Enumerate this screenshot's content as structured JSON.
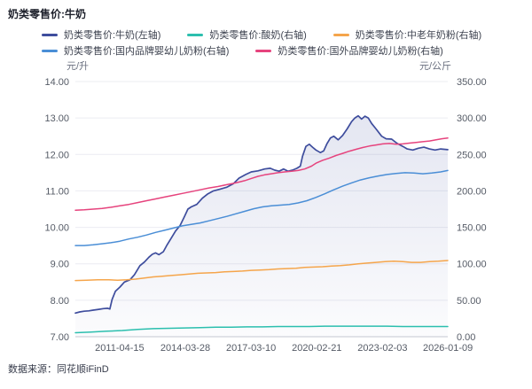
{
  "title": "奶类零售价:牛奶",
  "source": "数据来源：同花顺iFinD",
  "chart_data": {
    "type": "line",
    "background": "#ffffff",
    "grid_color": "#ebecf2",
    "axis_line_color": "#c6c9d2",
    "area_fill_color": "#3e4d9d",
    "x_axis": {
      "start_year": 2009.3,
      "end_year": 2026.02,
      "ticks": [
        {
          "label": "2011-04-15",
          "year": 2011.285
        },
        {
          "label": "2014-03-28",
          "year": 2014.236
        },
        {
          "label": "2017-03-10",
          "year": 2017.186
        },
        {
          "label": "2020-02-21",
          "year": 2020.139
        },
        {
          "label": "2023-02-03",
          "year": 2023.09
        },
        {
          "label": "2026-01-09",
          "year": 2026.022
        }
      ]
    },
    "left_axis": {
      "unit": "元/升",
      "min": 7,
      "max": 14,
      "ticks": [
        "14.00",
        "13.00",
        "12.00",
        "11.00",
        "10.00",
        "9.00",
        "8.00",
        "7.00"
      ]
    },
    "right_axis": {
      "unit": "元/公斤",
      "min": 0,
      "max": 350,
      "ticks": [
        "350.00",
        "300.00",
        "250.00",
        "200.00",
        "150.00",
        "100.00",
        "50.00",
        "0.00"
      ]
    },
    "series": [
      {
        "key": "milk",
        "name": "奶类零售价:牛奶(左轴)",
        "axis": "left",
        "color": "#3e4d9d",
        "width": 1.7,
        "area": true,
        "points": [
          [
            2009.3,
            7.65
          ],
          [
            2009.5,
            7.68
          ],
          [
            2009.7,
            7.7
          ],
          [
            2009.9,
            7.71
          ],
          [
            2010.1,
            7.73
          ],
          [
            2010.35,
            7.75
          ],
          [
            2010.55,
            7.77
          ],
          [
            2010.75,
            7.78
          ],
          [
            2010.85,
            7.76
          ],
          [
            2010.95,
            8.02
          ],
          [
            2011.1,
            8.25
          ],
          [
            2011.3,
            8.36
          ],
          [
            2011.5,
            8.5
          ],
          [
            2011.75,
            8.56
          ],
          [
            2011.95,
            8.7
          ],
          [
            2012.2,
            8.95
          ],
          [
            2012.4,
            9.05
          ],
          [
            2012.6,
            9.18
          ],
          [
            2012.75,
            9.26
          ],
          [
            2012.9,
            9.3
          ],
          [
            2013.05,
            9.25
          ],
          [
            2013.25,
            9.33
          ],
          [
            2013.4,
            9.5
          ],
          [
            2013.6,
            9.7
          ],
          [
            2013.8,
            9.9
          ],
          [
            2014.0,
            10.05
          ],
          [
            2014.2,
            10.3
          ],
          [
            2014.35,
            10.5
          ],
          [
            2014.5,
            10.56
          ],
          [
            2014.75,
            10.63
          ],
          [
            2015.0,
            10.8
          ],
          [
            2015.25,
            10.92
          ],
          [
            2015.5,
            11.0
          ],
          [
            2015.8,
            11.05
          ],
          [
            2016.1,
            11.1
          ],
          [
            2016.4,
            11.2
          ],
          [
            2016.65,
            11.35
          ],
          [
            2016.95,
            11.45
          ],
          [
            2017.2,
            11.52
          ],
          [
            2017.5,
            11.55
          ],
          [
            2017.8,
            11.6
          ],
          [
            2018.05,
            11.62
          ],
          [
            2018.25,
            11.57
          ],
          [
            2018.45,
            11.54
          ],
          [
            2018.65,
            11.6
          ],
          [
            2018.85,
            11.54
          ],
          [
            2019.05,
            11.57
          ],
          [
            2019.25,
            11.62
          ],
          [
            2019.4,
            11.68
          ],
          [
            2019.5,
            11.95
          ],
          [
            2019.65,
            12.22
          ],
          [
            2019.8,
            12.28
          ],
          [
            2019.95,
            12.2
          ],
          [
            2020.1,
            12.12
          ],
          [
            2020.3,
            12.05
          ],
          [
            2020.45,
            12.1
          ],
          [
            2020.6,
            12.3
          ],
          [
            2020.75,
            12.45
          ],
          [
            2020.9,
            12.5
          ],
          [
            2021.1,
            12.4
          ],
          [
            2021.3,
            12.52
          ],
          [
            2021.5,
            12.7
          ],
          [
            2021.7,
            12.9
          ],
          [
            2021.85,
            13.0
          ],
          [
            2022.0,
            13.06
          ],
          [
            2022.15,
            12.97
          ],
          [
            2022.3,
            13.05
          ],
          [
            2022.45,
            13.0
          ],
          [
            2022.6,
            12.85
          ],
          [
            2022.8,
            12.7
          ],
          [
            2023.05,
            12.5
          ],
          [
            2023.25,
            12.43
          ],
          [
            2023.5,
            12.42
          ],
          [
            2023.75,
            12.3
          ],
          [
            2024.0,
            12.22
          ],
          [
            2024.2,
            12.15
          ],
          [
            2024.45,
            12.12
          ],
          [
            2024.7,
            12.17
          ],
          [
            2024.95,
            12.2
          ],
          [
            2025.2,
            12.15
          ],
          [
            2025.45,
            12.12
          ],
          [
            2025.7,
            12.15
          ],
          [
            2026.02,
            12.13
          ]
        ]
      },
      {
        "key": "yogurt",
        "name": "奶类零售价:酸奶(右轴)",
        "axis": "right",
        "color": "#2cbfae",
        "width": 1.5,
        "area": false,
        "points": [
          [
            2009.3,
            5.5
          ],
          [
            2010.0,
            6.5
          ],
          [
            2010.7,
            7.5
          ],
          [
            2011.4,
            8.5
          ],
          [
            2012.1,
            10
          ],
          [
            2012.8,
            11
          ],
          [
            2013.5,
            11.5
          ],
          [
            2014.2,
            12
          ],
          [
            2014.9,
            12.5
          ],
          [
            2015.6,
            13
          ],
          [
            2016.3,
            13
          ],
          [
            2017.0,
            13.5
          ],
          [
            2017.7,
            13.5
          ],
          [
            2018.4,
            14
          ],
          [
            2019.1,
            14
          ],
          [
            2019.8,
            14
          ],
          [
            2020.5,
            14.5
          ],
          [
            2021.2,
            14.5
          ],
          [
            2021.9,
            14.5
          ],
          [
            2022.6,
            14.5
          ],
          [
            2023.3,
            14.5
          ],
          [
            2024.0,
            14
          ],
          [
            2024.7,
            14
          ],
          [
            2025.4,
            14
          ],
          [
            2026.02,
            14
          ]
        ]
      },
      {
        "key": "senior-milk-powder",
        "name": "奶类零售价:中老年奶粉(右轴)",
        "axis": "right",
        "color": "#f5a54b",
        "width": 1.5,
        "area": false,
        "points": [
          [
            2009.3,
            77
          ],
          [
            2009.8,
            77.5
          ],
          [
            2010.3,
            78
          ],
          [
            2010.8,
            78
          ],
          [
            2011.2,
            77.5
          ],
          [
            2011.6,
            78
          ],
          [
            2012.0,
            79
          ],
          [
            2012.4,
            80.5
          ],
          [
            2012.8,
            82
          ],
          [
            2013.2,
            83
          ],
          [
            2013.6,
            84
          ],
          [
            2014.0,
            85
          ],
          [
            2014.4,
            86
          ],
          [
            2014.8,
            87
          ],
          [
            2015.2,
            87.5
          ],
          [
            2015.6,
            88
          ],
          [
            2016.0,
            89
          ],
          [
            2016.4,
            89.5
          ],
          [
            2016.8,
            90
          ],
          [
            2017.2,
            91
          ],
          [
            2017.6,
            91.5
          ],
          [
            2018.0,
            92
          ],
          [
            2018.4,
            93
          ],
          [
            2018.8,
            93.5
          ],
          [
            2019.2,
            94
          ],
          [
            2019.6,
            95
          ],
          [
            2020.0,
            95.5
          ],
          [
            2020.4,
            96
          ],
          [
            2020.8,
            97
          ],
          [
            2021.2,
            97.5
          ],
          [
            2021.6,
            98.5
          ],
          [
            2022.0,
            100
          ],
          [
            2022.4,
            101
          ],
          [
            2022.8,
            102
          ],
          [
            2023.2,
            103
          ],
          [
            2023.6,
            103.5
          ],
          [
            2024.0,
            103
          ],
          [
            2024.4,
            102
          ],
          [
            2024.8,
            102
          ],
          [
            2025.2,
            103
          ],
          [
            2025.6,
            103.5
          ],
          [
            2026.02,
            104.5
          ]
        ]
      },
      {
        "key": "domestic-infant-formula",
        "name": "奶类零售价:国内品牌婴幼儿奶粉(右轴)",
        "axis": "right",
        "color": "#4a8ed6",
        "width": 1.5,
        "area": false,
        "points": [
          [
            2009.3,
            125
          ],
          [
            2009.7,
            125
          ],
          [
            2010.1,
            126
          ],
          [
            2010.5,
            127.5
          ],
          [
            2010.9,
            129
          ],
          [
            2011.3,
            131
          ],
          [
            2011.7,
            134
          ],
          [
            2012.1,
            136.5
          ],
          [
            2012.5,
            139.5
          ],
          [
            2012.9,
            143
          ],
          [
            2013.3,
            146
          ],
          [
            2013.7,
            149
          ],
          [
            2014.1,
            152
          ],
          [
            2014.5,
            154
          ],
          [
            2014.9,
            156
          ],
          [
            2015.3,
            159
          ],
          [
            2015.7,
            162
          ],
          [
            2016.1,
            165
          ],
          [
            2016.5,
            168.5
          ],
          [
            2016.9,
            172
          ],
          [
            2017.3,
            175.5
          ],
          [
            2017.7,
            178
          ],
          [
            2018.1,
            179.5
          ],
          [
            2018.5,
            180.5
          ],
          [
            2018.9,
            181.5
          ],
          [
            2019.3,
            183.5
          ],
          [
            2019.7,
            186.5
          ],
          [
            2020.1,
            191
          ],
          [
            2020.5,
            196
          ],
          [
            2020.9,
            201.5
          ],
          [
            2021.3,
            206.5
          ],
          [
            2021.7,
            211
          ],
          [
            2022.1,
            215
          ],
          [
            2022.5,
            218
          ],
          [
            2022.9,
            220.5
          ],
          [
            2023.3,
            222.5
          ],
          [
            2023.7,
            224
          ],
          [
            2024.1,
            225
          ],
          [
            2024.5,
            224.5
          ],
          [
            2024.9,
            223.5
          ],
          [
            2025.3,
            224.5
          ],
          [
            2025.7,
            226
          ],
          [
            2026.02,
            228
          ]
        ]
      },
      {
        "key": "foreign-infant-formula",
        "name": "奶类零售价:国外品牌婴幼儿奶粉(右轴)",
        "axis": "right",
        "color": "#e6437d",
        "width": 1.5,
        "area": false,
        "points": [
          [
            2009.3,
            173.5
          ],
          [
            2009.7,
            174
          ],
          [
            2010.1,
            175
          ],
          [
            2010.5,
            176
          ],
          [
            2010.9,
            177.5
          ],
          [
            2011.3,
            179.5
          ],
          [
            2011.7,
            181.5
          ],
          [
            2012.1,
            184
          ],
          [
            2012.5,
            186.5
          ],
          [
            2012.9,
            189
          ],
          [
            2013.3,
            191.5
          ],
          [
            2013.7,
            194
          ],
          [
            2014.1,
            196.5
          ],
          [
            2014.5,
            199
          ],
          [
            2014.9,
            201.5
          ],
          [
            2015.3,
            204
          ],
          [
            2015.7,
            206
          ],
          [
            2016.1,
            208.5
          ],
          [
            2016.5,
            211
          ],
          [
            2016.9,
            214
          ],
          [
            2017.2,
            217
          ],
          [
            2017.5,
            220
          ],
          [
            2017.8,
            222
          ],
          [
            2018.1,
            223.5
          ],
          [
            2018.4,
            225
          ],
          [
            2018.7,
            226
          ],
          [
            2019.0,
            227
          ],
          [
            2019.3,
            228
          ],
          [
            2019.6,
            230
          ],
          [
            2019.9,
            234
          ],
          [
            2020.1,
            238
          ],
          [
            2020.4,
            242
          ],
          [
            2020.7,
            245
          ],
          [
            2021.0,
            248.5
          ],
          [
            2021.3,
            251.5
          ],
          [
            2021.6,
            254.5
          ],
          [
            2021.9,
            257
          ],
          [
            2022.2,
            259.5
          ],
          [
            2022.5,
            261.5
          ],
          [
            2022.8,
            263
          ],
          [
            2023.1,
            264.5
          ],
          [
            2023.4,
            265
          ],
          [
            2023.7,
            264
          ],
          [
            2024.0,
            264.5
          ],
          [
            2024.3,
            265.5
          ],
          [
            2024.6,
            266.5
          ],
          [
            2024.9,
            267.5
          ],
          [
            2025.2,
            268.5
          ],
          [
            2025.5,
            270
          ],
          [
            2025.75,
            271.5
          ],
          [
            2026.02,
            272.5
          ]
        ]
      }
    ]
  }
}
